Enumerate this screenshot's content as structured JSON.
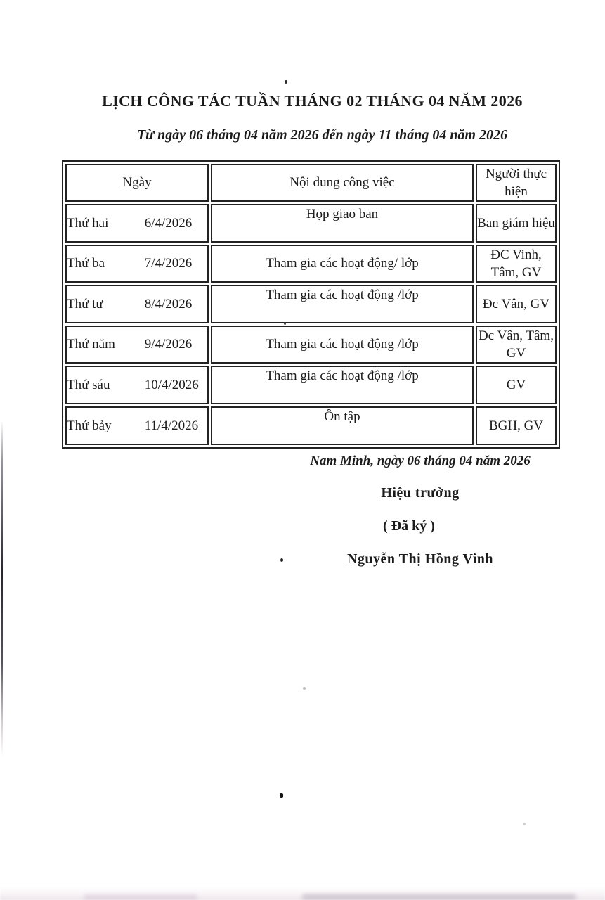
{
  "document": {
    "title": "LỊCH CÔNG TÁC TUẦN THÁNG 02 THÁNG 04 NĂM 2026",
    "subtitle": "Từ ngày 06 tháng 04  năm 2026 đến ngày 11 tháng 04 năm 2026"
  },
  "table": {
    "headers": {
      "date": "Ngày",
      "content": "Nội dung công việc",
      "assignee": "Người thực hiện"
    },
    "rows": [
      {
        "day": "Thứ hai",
        "date": "6/4/2026",
        "content": "Họp giao ban",
        "assignee": "Ban giám hiệu"
      },
      {
        "day": "Thứ ba",
        "date": "7/4/2026",
        "content": "Tham gia các hoạt động/ lớp",
        "assignee": "ĐC Vinh, Tâm, GV"
      },
      {
        "day": "Thứ tư",
        "date": "8/4/2026",
        "content": "Tham gia các hoạt động /lớp",
        "assignee": "Đc Vân, GV"
      },
      {
        "day": "Thứ năm",
        "date": "9/4/2026",
        "content": "Tham gia các hoạt động /lớp",
        "assignee": "Đc Vân, Tâm, GV"
      },
      {
        "day": "Thứ sáu",
        "date": "10/4/2026",
        "content": "Tham gia các hoạt động /lớp",
        "assignee": "GV"
      },
      {
        "day": "Thứ bảy",
        "date": "11/4/2026",
        "content": "Ôn tập",
        "assignee": "BGH, GV"
      }
    ]
  },
  "signature": {
    "place_date": "Nam Minh, ngày 06 tháng 04 năm 2026",
    "role": "Hiệu trưởng",
    "signed_note": "( Đã ký )",
    "name": "Nguyễn Thị Hồng Vinh"
  },
  "colors": {
    "ink": "#1b1b1b",
    "paper": "#ffffff",
    "table_border": "#232323"
  }
}
